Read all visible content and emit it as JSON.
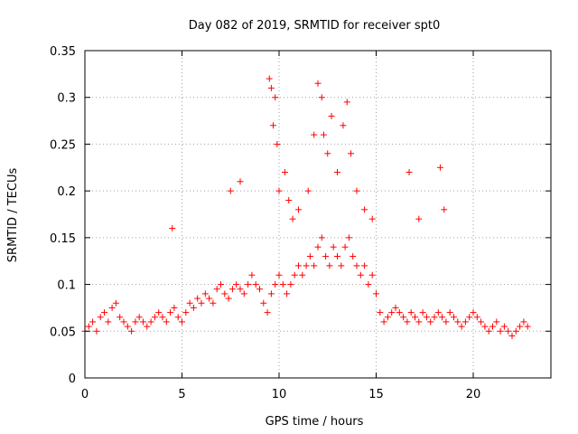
{
  "chart_data": {
    "type": "scatter",
    "title": "Day 082 of 2019, SRMTID for receiver spt0",
    "xlabel": "GPS time / hours",
    "ylabel": "SRMTID / TECUs",
    "xlim": [
      0,
      24
    ],
    "ylim": [
      0,
      0.35
    ],
    "xticks": [
      0,
      5,
      10,
      15,
      20
    ],
    "yticks": [
      0,
      0.05,
      0.1,
      0.15,
      0.2,
      0.25,
      0.3,
      0.35
    ],
    "ytick_labels": [
      "0",
      "0.05",
      "0.1",
      "0.15",
      "0.2",
      "0.25",
      "0.3",
      "0.35"
    ],
    "grid": true,
    "marker": "+",
    "color": "#ff0000",
    "series": [
      {
        "x": [
          0.0,
          0.2,
          0.4,
          0.6,
          0.8,
          1.0,
          1.2,
          1.4,
          1.6,
          1.8,
          2.0,
          2.2,
          2.4,
          2.6,
          2.8,
          3.0,
          3.2,
          3.4,
          3.6,
          3.8,
          4.0,
          4.2,
          4.4,
          4.6,
          4.8,
          5.0,
          5.2,
          5.4,
          5.6,
          5.8,
          6.0,
          6.2,
          6.4,
          6.6,
          6.8,
          7.0,
          7.2,
          7.4,
          7.6,
          7.8,
          8.0,
          8.2,
          8.4,
          8.6,
          8.8,
          9.0,
          9.2,
          9.4,
          9.6,
          9.8,
          10.0,
          10.2,
          10.4,
          10.6,
          10.8,
          11.0,
          11.2,
          11.4,
          11.6,
          11.8,
          12.0,
          12.2,
          12.4,
          12.6,
          12.8,
          13.0,
          13.2,
          13.4,
          13.6,
          13.8,
          14.0,
          14.2,
          14.4,
          14.6,
          14.8,
          15.0,
          15.2,
          15.4,
          15.6,
          15.8,
          16.0,
          16.2,
          16.4,
          16.6,
          16.8,
          17.0,
          17.2,
          17.4,
          17.6,
          17.8,
          18.0,
          18.2,
          18.4,
          18.6,
          18.8,
          19.0,
          19.2,
          19.4,
          19.6,
          19.8,
          20.0,
          20.2,
          20.4,
          20.6,
          20.8,
          21.0,
          21.2,
          21.4,
          21.6,
          21.8,
          22.0,
          22.2,
          22.4,
          22.6,
          22.8
        ],
        "y": [
          0.05,
          0.055,
          0.06,
          0.05,
          0.065,
          0.07,
          0.06,
          0.075,
          0.08,
          0.065,
          0.06,
          0.055,
          0.05,
          0.06,
          0.065,
          0.06,
          0.055,
          0.06,
          0.065,
          0.07,
          0.065,
          0.06,
          0.07,
          0.075,
          0.065,
          0.06,
          0.07,
          0.08,
          0.075,
          0.085,
          0.08,
          0.09,
          0.085,
          0.08,
          0.095,
          0.1,
          0.09,
          0.085,
          0.095,
          0.1,
          0.095,
          0.09,
          0.1,
          0.11,
          0.1,
          0.095,
          0.08,
          0.07,
          0.09,
          0.1,
          0.11,
          0.1,
          0.09,
          0.1,
          0.11,
          0.12,
          0.11,
          0.12,
          0.13,
          0.12,
          0.14,
          0.15,
          0.13,
          0.12,
          0.14,
          0.13,
          0.12,
          0.14,
          0.15,
          0.13,
          0.12,
          0.11,
          0.12,
          0.1,
          0.11,
          0.09,
          0.07,
          0.06,
          0.065,
          0.07,
          0.075,
          0.07,
          0.065,
          0.06,
          0.07,
          0.065,
          0.06,
          0.07,
          0.065,
          0.06,
          0.065,
          0.07,
          0.065,
          0.06,
          0.07,
          0.065,
          0.06,
          0.055,
          0.06,
          0.065,
          0.07,
          0.065,
          0.06,
          0.055,
          0.05,
          0.055,
          0.06,
          0.05,
          0.055,
          0.05,
          0.045,
          0.05,
          0.055,
          0.06,
          0.055
        ]
      },
      {
        "x": [
          9.5,
          9.6,
          9.7,
          9.8,
          9.9,
          10.0,
          10.3,
          10.5,
          10.7,
          11.0,
          11.5,
          11.8,
          12.0,
          12.2,
          12.3,
          12.5,
          12.7,
          13.0,
          13.3,
          13.5,
          13.7,
          14.0,
          14.4,
          14.8,
          16.7,
          18.3,
          18.5,
          4.5,
          7.5,
          8.0,
          17.2
        ],
        "y": [
          0.32,
          0.31,
          0.27,
          0.3,
          0.25,
          0.2,
          0.22,
          0.19,
          0.17,
          0.18,
          0.2,
          0.26,
          0.315,
          0.3,
          0.26,
          0.24,
          0.28,
          0.22,
          0.27,
          0.295,
          0.24,
          0.2,
          0.18,
          0.17,
          0.22,
          0.225,
          0.18,
          0.16,
          0.2,
          0.21,
          0.17
        ]
      }
    ]
  }
}
